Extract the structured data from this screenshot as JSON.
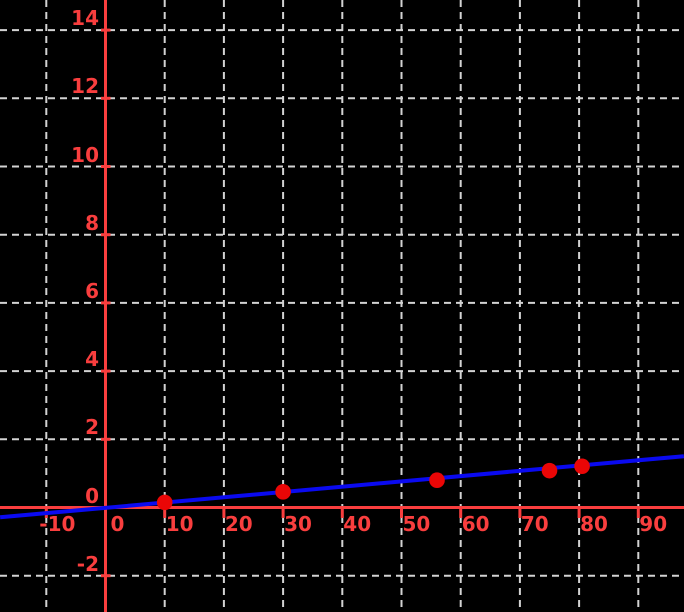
{
  "chart_data": {
    "type": "scatter",
    "title": "",
    "xlabel": "",
    "ylabel": "",
    "grid": true,
    "grid_style": "dashed",
    "legend": "none",
    "x_ticks": [
      -10,
      0,
      10,
      20,
      30,
      40,
      50,
      60,
      70,
      80,
      90
    ],
    "y_ticks": [
      -2,
      0,
      2,
      4,
      6,
      8,
      10,
      12,
      14
    ],
    "xlim": [
      -17.8,
      97.7
    ],
    "ylim": [
      -3.1,
      14.9
    ],
    "points": [
      {
        "x": 10,
        "y": 0.15
      },
      {
        "x": 30,
        "y": 0.46
      },
      {
        "x": 56,
        "y": 0.8
      },
      {
        "x": 75,
        "y": 1.08
      },
      {
        "x": 80.5,
        "y": 1.21
      }
    ],
    "fit_line": {
      "type": "linear",
      "slope": 0.0155,
      "intercept": -0.01
    }
  },
  "colors": {
    "background": "#000000",
    "grid": "#d3d3d3",
    "axis": "#f93e3e",
    "tick_label": "#f93e3e",
    "point": "#ea0606",
    "fit_line": "#0a0af0"
  }
}
